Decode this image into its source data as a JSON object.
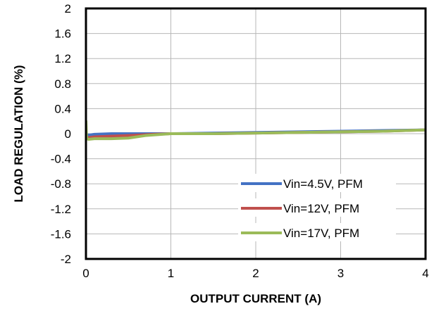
{
  "chart_data": {
    "type": "line",
    "xlabel": "OUTPUT CURRENT (A)",
    "ylabel": "LOAD REGULATION (%)",
    "xlim": [
      0,
      4
    ],
    "ylim": [
      -2,
      2
    ],
    "x_ticks": [
      0,
      1,
      2,
      3,
      4
    ],
    "x_tick_labels": [
      "0",
      "1",
      "2",
      "3",
      "4"
    ],
    "y_ticks": [
      -2,
      -1.6,
      -1.2,
      -0.8,
      -0.4,
      0,
      0.4,
      0.8,
      1.2,
      1.6,
      2
    ],
    "y_tick_labels": [
      "-2",
      "-1.6",
      "-1.2",
      "-0.8",
      "-0.4",
      "0",
      "0.4",
      "0.8",
      "1.2",
      "1.6",
      "2"
    ],
    "grid": true,
    "legend_position": "bottom-right",
    "series": [
      {
        "name": "Vin=4.5V, PFM",
        "color": "#4472C4",
        "x": [
          0.01,
          0.05,
          0.1,
          0.3,
          0.5,
          0.8,
          1,
          1.5,
          2,
          2.5,
          3,
          3.5,
          4
        ],
        "y": [
          -0.02,
          -0.02,
          -0.01,
          0.0,
          0.0,
          0.0,
          0.0,
          0.01,
          0.02,
          0.03,
          0.04,
          0.05,
          0.06
        ]
      },
      {
        "name": "Vin=12V, PFM",
        "color": "#C0504D",
        "x": [
          0.01,
          0.05,
          0.1,
          0.3,
          0.5,
          0.8,
          1,
          1.5,
          2,
          2.5,
          3,
          3.5,
          4
        ],
        "y": [
          -0.06,
          -0.06,
          -0.05,
          -0.04,
          -0.03,
          -0.01,
          0.0,
          0.0,
          0.01,
          0.02,
          0.03,
          0.04,
          0.06
        ]
      },
      {
        "name": "Vin=17V, PFM",
        "color": "#9BBB59",
        "x": [
          0.0,
          0.005,
          0.01,
          0.03,
          0.1,
          0.3,
          0.5,
          0.7,
          1,
          1.5,
          2,
          2.5,
          3,
          3.5,
          4
        ],
        "y": [
          0.2,
          0.0,
          -0.08,
          -0.09,
          -0.08,
          -0.08,
          -0.07,
          -0.03,
          0.0,
          0.0,
          0.01,
          0.02,
          0.03,
          0.04,
          0.06
        ]
      }
    ]
  }
}
